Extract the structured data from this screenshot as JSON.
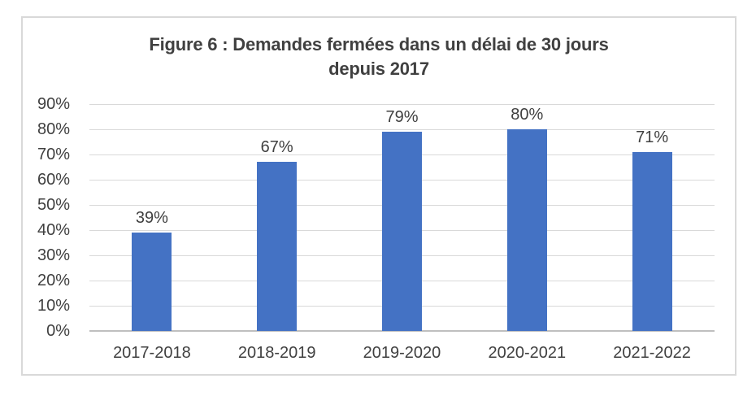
{
  "chart": {
    "title_line1": "Figure 6 : Demandes fermées dans un délai de 30 jours",
    "title_line2": "depuis 2017",
    "bar_color": "#4472C4",
    "grid_color": "#D9D9D9",
    "axis_line_color": "#BFBFBF",
    "frame_border_color": "#D9D9D9",
    "text_color": "#404040"
  },
  "chart_data": {
    "type": "bar",
    "title": "Figure 6 : Demandes fermées dans un délai de 30 jours depuis 2017",
    "categories": [
      "2017-2018",
      "2018-2019",
      "2019-2020",
      "2020-2021",
      "2021-2022"
    ],
    "values": [
      39,
      67,
      79,
      80,
      71
    ],
    "data_labels": [
      "39%",
      "67%",
      "79%",
      "80%",
      "71%"
    ],
    "xlabel": "",
    "ylabel": "",
    "ylim": [
      0,
      90
    ],
    "ytick_step": 10,
    "ytick_labels": [
      "0%",
      "10%",
      "20%",
      "30%",
      "40%",
      "50%",
      "60%",
      "70%",
      "80%",
      "90%"
    ],
    "grid": true,
    "legend": false
  }
}
